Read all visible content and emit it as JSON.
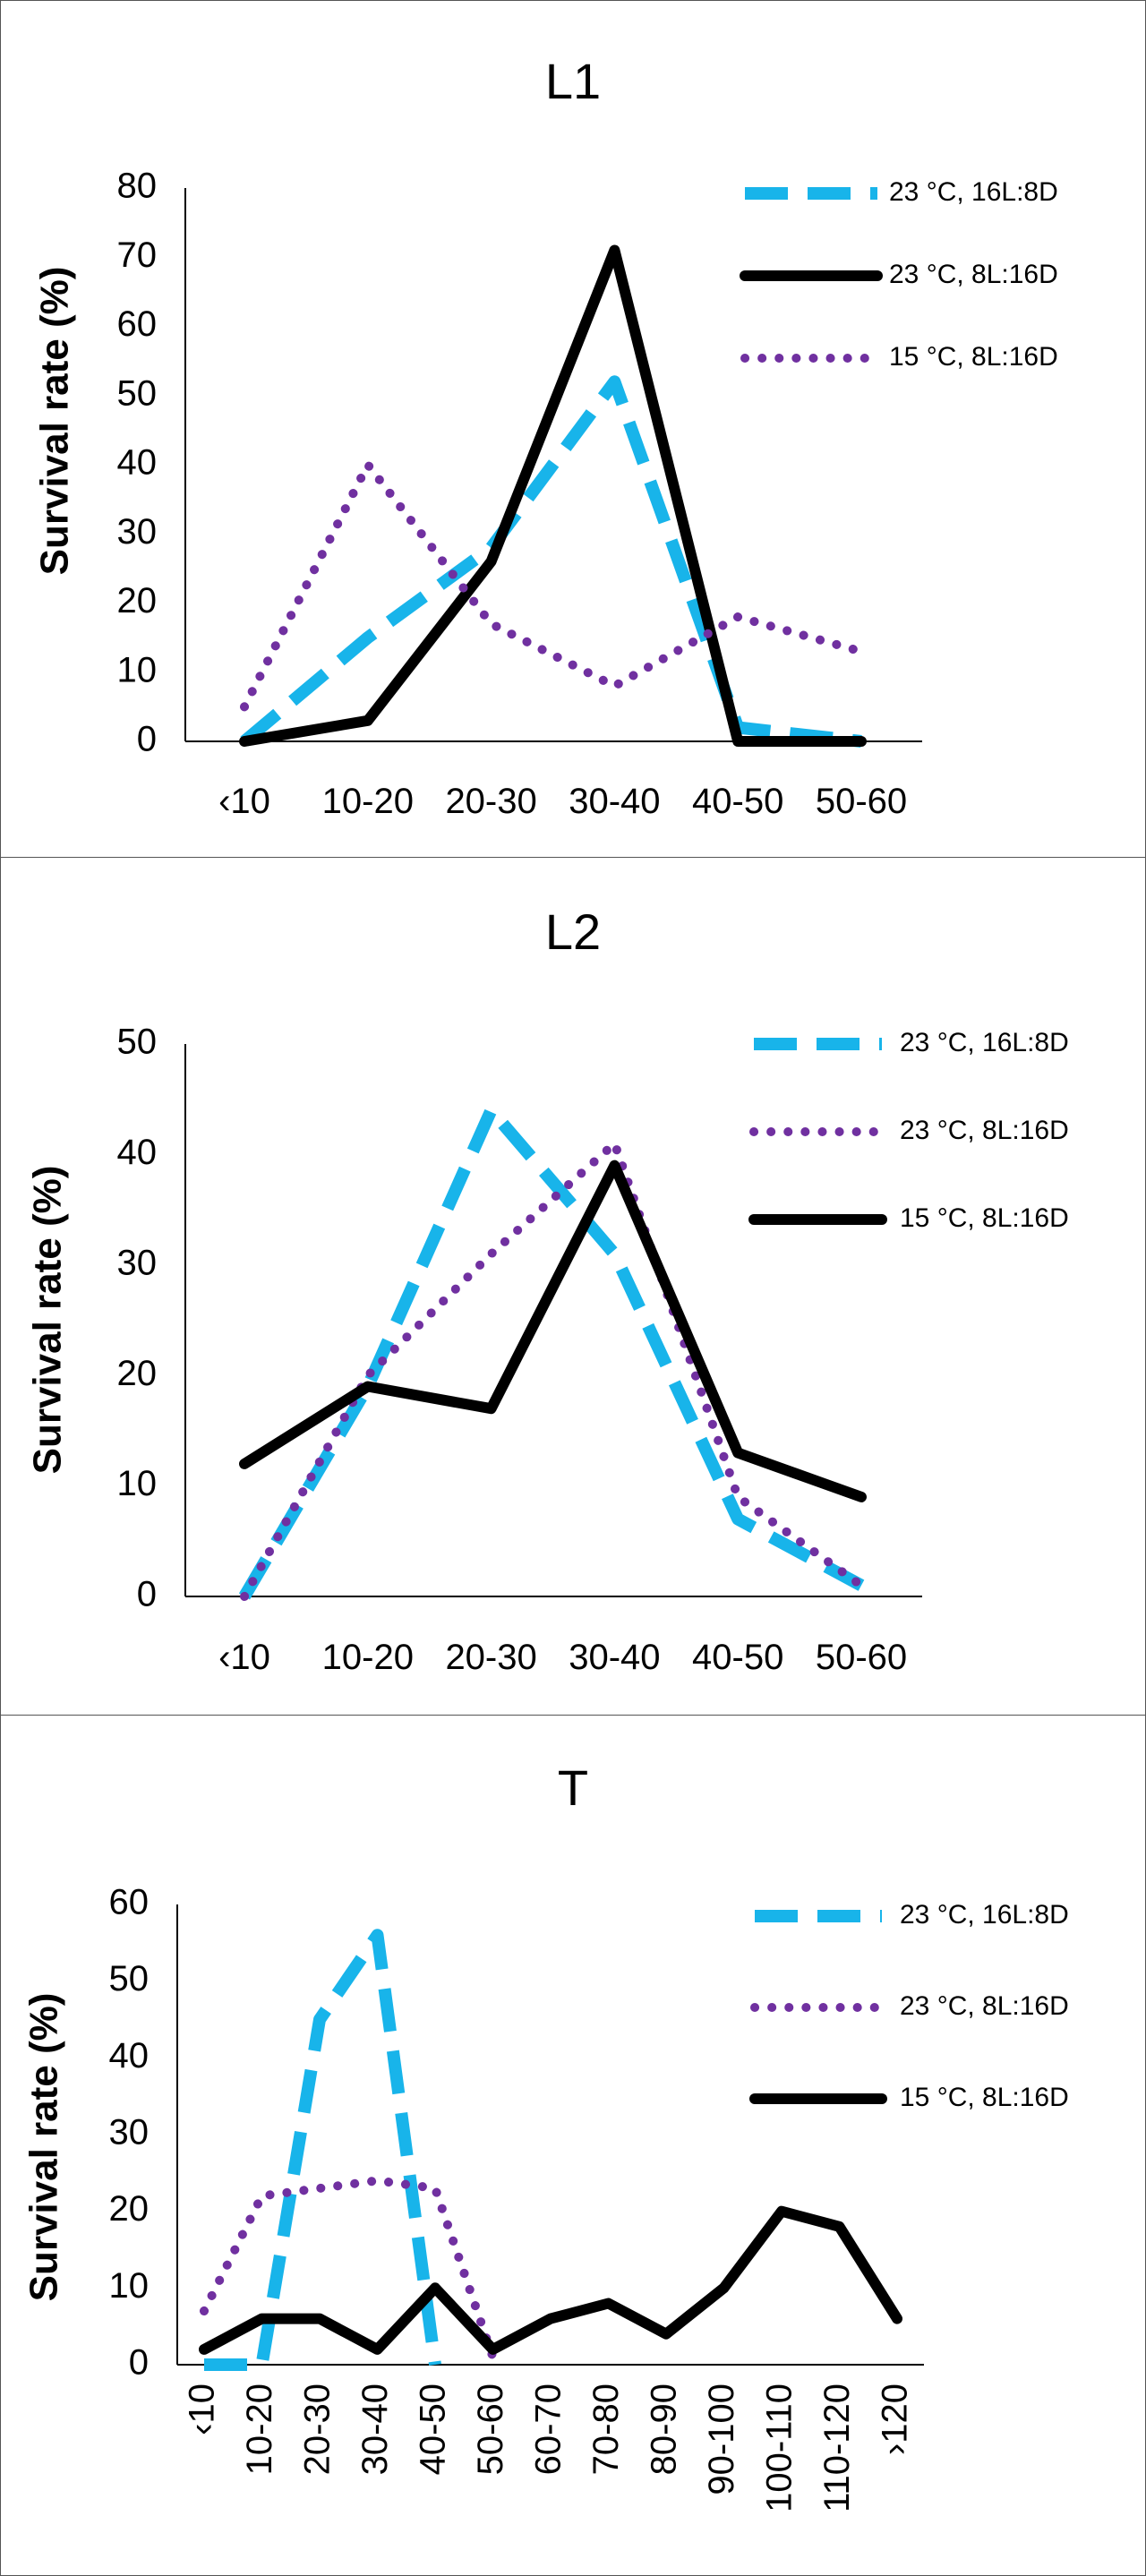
{
  "chart_data": [
    {
      "type": "line",
      "title": "L1",
      "ylabel": "Survival rate (%)",
      "xlabel": "",
      "ylim": [
        0,
        80
      ],
      "yticks": [
        0,
        10,
        20,
        30,
        40,
        50,
        60,
        70,
        80
      ],
      "categories": [
        "‹10",
        "10-20",
        "20-30",
        "30-40",
        "40-50",
        "50-60"
      ],
      "rotate_labels": false,
      "legend_position": "top-right",
      "series": [
        {
          "name": "23 °C,  16L:8D",
          "style": "dashed",
          "color": "#18b4ea",
          "values": [
            0,
            15,
            28,
            52,
            2,
            0
          ]
        },
        {
          "name": "23 °C,  8L:16D",
          "style": "solid",
          "color": "#000000",
          "values": [
            0,
            3,
            26,
            71,
            0,
            0
          ]
        },
        {
          "name": "15 °C,  8L:16D",
          "style": "dotted",
          "color": "#7030a0",
          "values": [
            5,
            40,
            17,
            8,
            18,
            13
          ]
        }
      ]
    },
    {
      "type": "line",
      "title": "L2",
      "ylabel": "Survival rate (%)",
      "xlabel": "",
      "ylim": [
        0,
        50
      ],
      "yticks": [
        0,
        10,
        20,
        30,
        40,
        50
      ],
      "categories": [
        "‹10",
        "10-20",
        "20-30",
        "30-40",
        "40-50",
        "50-60"
      ],
      "rotate_labels": false,
      "legend_position": "top-right",
      "series": [
        {
          "name": "23 °C,  16L:8D",
          "style": "dashed",
          "color": "#18b4ea",
          "values": [
            0,
            19,
            44,
            31,
            7,
            1
          ]
        },
        {
          "name": "23 °C,  8L:16D",
          "style": "dotted",
          "color": "#7030a0",
          "values": [
            0,
            20,
            31,
            41,
            9,
            1
          ]
        },
        {
          "name": "15 °C,  8L:16D",
          "style": "solid",
          "color": "#000000",
          "values": [
            12,
            19,
            17,
            39,
            13,
            9
          ]
        }
      ]
    },
    {
      "type": "line",
      "title": "T",
      "ylabel": "Survival rate (%)",
      "xlabel": "",
      "ylim": [
        0,
        60
      ],
      "yticks": [
        0,
        10,
        20,
        30,
        40,
        50,
        60
      ],
      "categories": [
        "‹10",
        "10-20",
        "20-30",
        "30-40",
        "40-50",
        "50-60",
        "60-70",
        "70-80",
        "80-90",
        "90-100",
        "100-110",
        "110-120",
        "›120"
      ],
      "rotate_labels": true,
      "legend_position": "top-right",
      "series": [
        {
          "name": "23 °C, 16L:8D",
          "style": "dashed",
          "color": "#18b4ea",
          "values": [
            0,
            0,
            45,
            56,
            0,
            null,
            null,
            null,
            null,
            null,
            null,
            null,
            null
          ]
        },
        {
          "name": "23 °C,  8L:16D",
          "style": "dotted",
          "color": "#7030a0",
          "values": [
            7,
            22,
            23,
            24,
            23,
            1,
            null,
            null,
            null,
            null,
            null,
            null,
            null
          ]
        },
        {
          "name": "15 °C,  8L:16D",
          "style": "solid",
          "color": "#000000",
          "values": [
            2,
            6,
            6,
            2,
            10,
            2,
            6,
            8,
            4,
            10,
            20,
            18,
            6
          ]
        }
      ]
    }
  ]
}
